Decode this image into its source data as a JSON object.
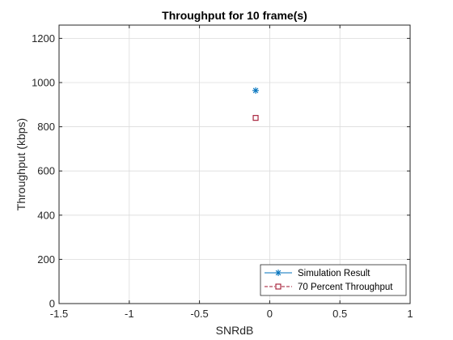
{
  "chart_data": {
    "type": "scatter",
    "title": "Throughput for 10 frame(s)",
    "xlabel": "SNRdB",
    "ylabel": "Throughput (kbps)",
    "xlim": [
      -1.5,
      1
    ],
    "ylim": [
      0,
      1260
    ],
    "xticks": [
      -1.5,
      -1,
      -0.5,
      0,
      0.5,
      1
    ],
    "xtick_labels": [
      "-1.5",
      "-1",
      "-0.5",
      "0",
      "0.5",
      "1"
    ],
    "yticks": [
      0,
      200,
      400,
      600,
      800,
      1000,
      1200
    ],
    "ytick_labels": [
      "0",
      "200",
      "400",
      "600",
      "800",
      "1000",
      "1200"
    ],
    "grid": true,
    "legend_position": "bottom-right",
    "series": [
      {
        "name": "Simulation Result",
        "marker": "asterisk",
        "color": "#0072BD",
        "x": [
          -0.1
        ],
        "y": [
          964
        ]
      },
      {
        "name": "70 Percent Throughput",
        "marker": "square",
        "color": "#A2142F",
        "x": [
          -0.1
        ],
        "y": [
          840
        ]
      }
    ]
  }
}
